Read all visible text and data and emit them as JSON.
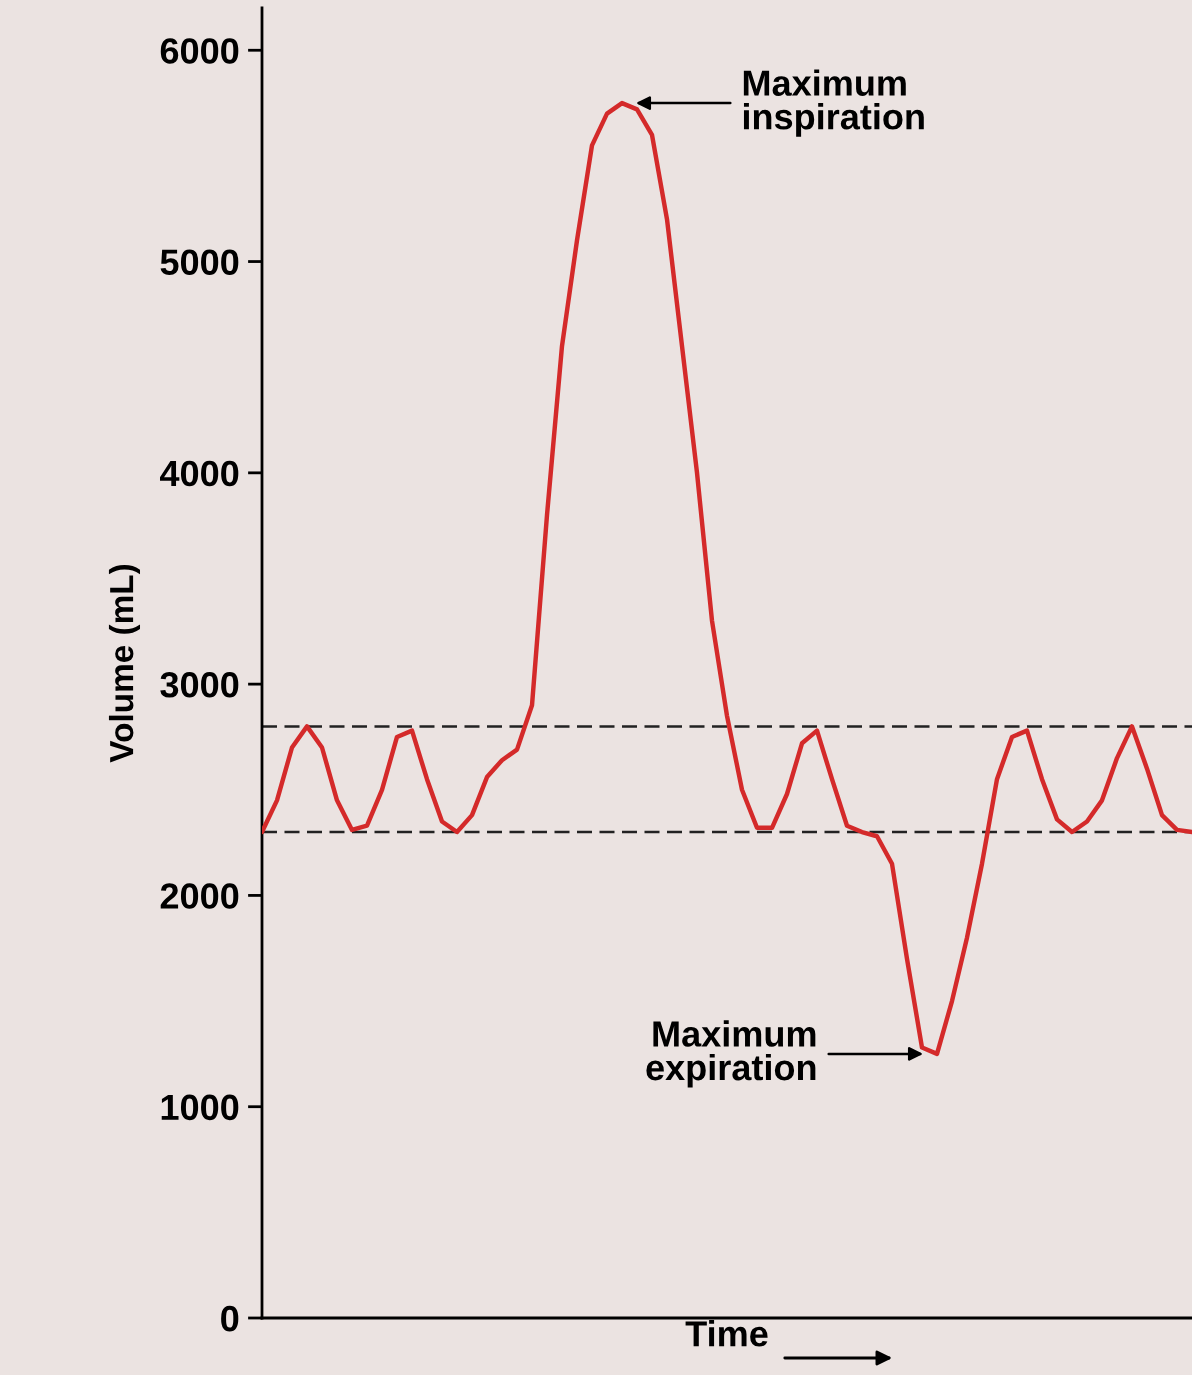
{
  "chart_data": {
    "type": "line",
    "xlabel": "Time",
    "ylabel": "Volume (mL)",
    "categories": [
      null,
      null,
      null,
      null,
      null,
      null,
      null,
      null,
      null,
      null,
      null,
      null,
      null,
      null,
      null,
      null,
      null,
      null,
      null,
      null,
      null,
      null,
      null,
      null,
      null,
      null,
      null,
      null,
      null,
      null,
      null,
      null,
      null,
      null,
      null,
      null,
      null,
      null,
      null,
      null,
      null,
      null,
      null,
      null,
      null,
      null,
      null,
      null,
      null,
      null,
      null,
      null,
      null,
      null,
      null,
      null,
      null,
      null,
      null,
      null,
      null,
      null,
      null
    ],
    "series": [
      {
        "color": "#d42a2a",
        "values": [
          2300,
          2450,
          2700,
          2800,
          2700,
          2450,
          2310,
          2330,
          2500,
          2750,
          2780,
          2550,
          2350,
          2300,
          2380,
          2560,
          2640,
          2690,
          2900,
          3800,
          4600,
          5100,
          5550,
          5700,
          5750,
          5720,
          5600,
          5200,
          4600,
          4000,
          3300,
          2850,
          2500,
          2320,
          2320,
          2480,
          2720,
          2780,
          2550,
          2330,
          2300,
          2280,
          2150,
          1700,
          1280,
          1250,
          1500,
          1800,
          2150,
          2550,
          2750,
          2780,
          2550,
          2360,
          2300,
          2350,
          2450,
          2650,
          2800,
          2600,
          2380,
          2310,
          2300
        ]
      }
    ],
    "ylim": [
      0,
      6200
    ],
    "yticks": [
      0,
      1000,
      2000,
      3000,
      4000,
      5000,
      6000
    ],
    "ref_lines": [
      {
        "axis": "y",
        "value": 2800,
        "color": "#222222",
        "line_style": "dashed"
      },
      {
        "axis": "y",
        "value": 2300,
        "color": "#222222",
        "line_style": "dashed"
      }
    ],
    "annotations": [
      "Maximum\ninspiration",
      "Maximum\nexpiration"
    ],
    "grid": false,
    "marker": "none",
    "line_style": "solid"
  }
}
